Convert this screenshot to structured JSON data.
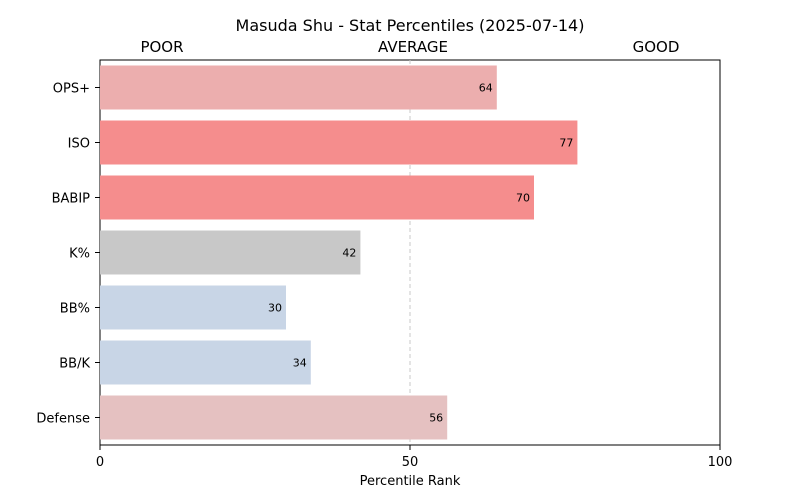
{
  "chart_data": {
    "type": "bar",
    "orientation": "horizontal",
    "title": "Masuda Shu - Stat Percentiles (2025-07-14)",
    "xlabel": "Percentile Rank",
    "ylabel": "",
    "xlim": [
      0,
      100
    ],
    "xticks": [
      0,
      50,
      100
    ],
    "zones": [
      "POOR",
      "AVERAGE",
      "GOOD"
    ],
    "reference_line": 50,
    "categories": [
      "OPS+",
      "ISO",
      "BABIP",
      "K%",
      "BB%",
      "BB/K",
      "Defense"
    ],
    "values": [
      64,
      77,
      70,
      42,
      30,
      34,
      56
    ],
    "colors": [
      "#ecaeae",
      "#f58d8d",
      "#f58d8d",
      "#c8c8c8",
      "#c8d5e6",
      "#c8d5e6",
      "#e5c1c1"
    ]
  }
}
